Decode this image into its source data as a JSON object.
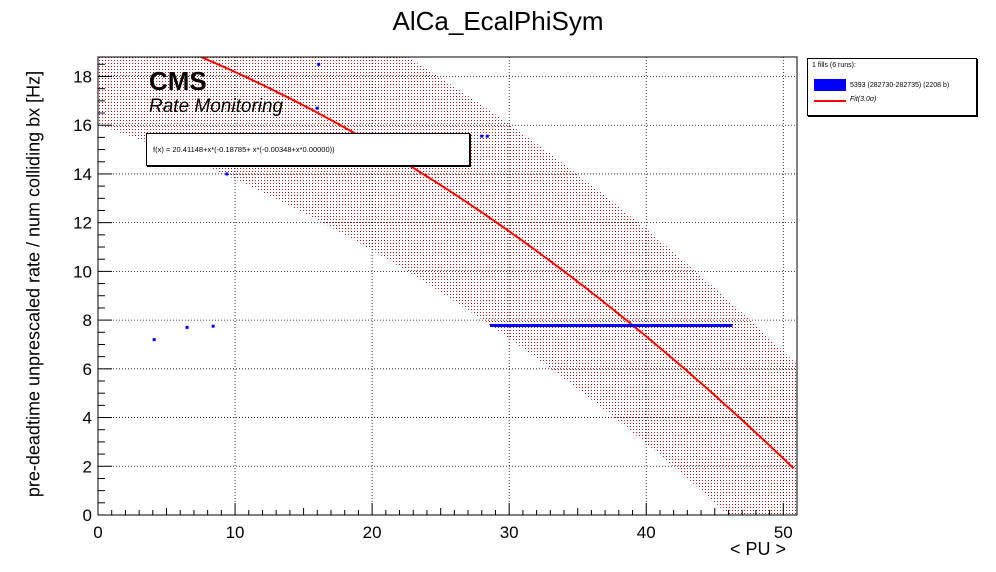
{
  "chart_data": {
    "type": "scatter",
    "title": "AlCa_EcalPhiSym",
    "xlabel": "< PU >",
    "ylabel": "pre-deadtime unprescaled rate / num colliding bx [Hz]",
    "xlim": [
      0,
      51
    ],
    "ylim": [
      0,
      18.8
    ],
    "x_ticks": [
      "0",
      "10",
      "20",
      "30",
      "40",
      "50"
    ],
    "y_ticks": [
      "0",
      "2",
      "4",
      "6",
      "8",
      "10",
      "12",
      "14",
      "16",
      "18"
    ],
    "grid": true,
    "legend_position": "outside-top-right",
    "cms_label": "CMS",
    "cms_sublabel": "Rate Monitoring",
    "legend": {
      "header": "1 fills (6 runs):",
      "entries": [
        "5393 (282730-282735) (2208 b)",
        "Fit(3.0σ)"
      ]
    },
    "fit_formula": "f(x) = 20.41148+x*(-0.18785+ x*(-0.00348+x*0.00000))",
    "fit": {
      "a0": 20.41148,
      "a1": -0.18785,
      "a2": -0.00348,
      "a3": 0.0,
      "x_range": [
        7.5,
        50.8
      ],
      "band_sigma": 3.0,
      "band_halfwidth": 4.4
    },
    "series": [
      {
        "name": "5393 (282730-282735) (2208 b)",
        "color": "#0000ff",
        "points": [
          [
            4.1,
            7.2
          ],
          [
            6.5,
            7.7
          ],
          [
            8.4,
            7.75
          ],
          [
            9.4,
            14.0
          ],
          [
            16.0,
            16.7
          ],
          [
            16.1,
            18.5
          ],
          [
            25.0,
            15.55
          ],
          [
            26.0,
            15.55
          ],
          [
            27.0,
            15.55
          ],
          [
            28.0,
            15.55
          ],
          [
            28.4,
            15.55
          ]
        ],
        "cluster_segments": [
          [
            28.6,
            7.78,
            46.3,
            7.78
          ]
        ]
      }
    ]
  },
  "colors": {
    "fit": "#ff0000",
    "band": "#b02020",
    "points": "#0000ff"
  }
}
